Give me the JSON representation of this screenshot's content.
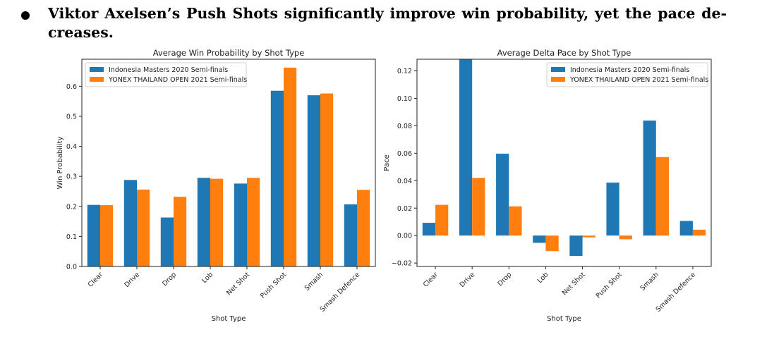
{
  "heading": "Viktor Axelsen’s Push Shots significantly improve win probability, yet the pace de-creases.",
  "heading_line1": "Viktor Axelsen’s Push Shots significantly improve win probability, yet the pace de-",
  "heading_line2": "creases.",
  "colors": {
    "series1": "#1f77b4",
    "series2": "#ff7f0e"
  },
  "chart_data": [
    {
      "type": "bar",
      "title": "Average Win Probability by Shot Type",
      "xlabel": "Shot Type",
      "ylabel": "Win Probability",
      "categories": [
        "Clear",
        "Drive",
        "Drop",
        "Lob",
        "Net Shot",
        "Push Shot",
        "Smash",
        "Smash Defence"
      ],
      "series": [
        {
          "name": "Indonesia Masters 2020 Semi-finals",
          "values": [
            0.205,
            0.288,
            0.163,
            0.295,
            0.276,
            0.585,
            0.57,
            0.207
          ]
        },
        {
          "name": "YONEX THAILAND OPEN 2021 Semi-finals",
          "values": [
            0.204,
            0.256,
            0.232,
            0.292,
            0.295,
            0.662,
            0.576,
            0.255
          ]
        }
      ],
      "ylim": [
        0,
        0.69
      ],
      "yticks": [
        0.0,
        0.1,
        0.2,
        0.3,
        0.4,
        0.5,
        0.6
      ],
      "ytick_labels": [
        "0.0",
        "0.1",
        "0.2",
        "0.3",
        "0.4",
        "0.5",
        "0.6"
      ],
      "legend": "top-left",
      "grid": false
    },
    {
      "type": "bar",
      "title": "Average Delta Pace by Shot Type",
      "xlabel": "Shot Type",
      "ylabel": "Pace",
      "categories": [
        "Clear",
        "Drive",
        "Drop",
        "Lob",
        "Net Shot",
        "Push Shot",
        "Smash",
        "Smash Defence"
      ],
      "series": [
        {
          "name": "Indonesia Masters 2020 Semi-finals",
          "values": [
            0.0093,
            0.1282,
            0.0597,
            -0.0053,
            -0.0148,
            0.0386,
            0.0838,
            0.0107
          ]
        },
        {
          "name": "YONEX THAILAND OPEN 2021 Semi-finals",
          "values": [
            0.0224,
            0.042,
            0.0213,
            -0.0113,
            -0.0013,
            -0.0027,
            0.0572,
            0.0043
          ]
        }
      ],
      "ylim": [
        -0.0225,
        0.1285
      ],
      "yticks": [
        -0.02,
        0.0,
        0.02,
        0.04,
        0.06,
        0.08,
        0.1,
        0.12
      ],
      "ytick_labels": [
        "−0.02",
        "0.00",
        "0.02",
        "0.04",
        "0.06",
        "0.08",
        "0.10",
        "0.12"
      ],
      "legend": "top-right",
      "grid": false
    }
  ]
}
